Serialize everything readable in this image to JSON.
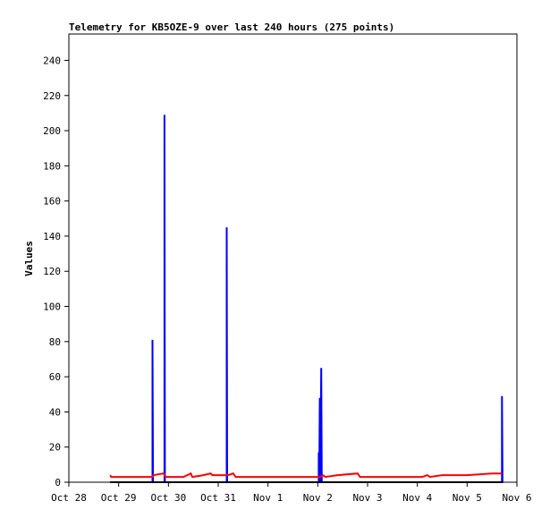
{
  "chart_data": {
    "type": "line",
    "title": "Telemetry for KB5OZE-9 over last 240 hours (275 points)",
    "xlabel": "",
    "ylabel": "Values",
    "ylim": [
      0,
      255
    ],
    "xlim": [
      0,
      9
    ],
    "x_tick_labels": [
      "Oct 28",
      "Oct 29",
      "Oct 30",
      "Oct 31",
      "Nov 1",
      "Nov 2",
      "Nov 3",
      "Nov 4",
      "Nov 5",
      "Nov 6"
    ],
    "y_ticks": [
      0,
      20,
      40,
      60,
      80,
      100,
      120,
      140,
      160,
      180,
      200,
      220,
      240
    ],
    "grid": false,
    "legend": "none",
    "series": [
      {
        "color": "#0000ff",
        "style": "spikes",
        "points": [
          [
            1.68,
            0
          ],
          [
            1.68,
            81
          ],
          [
            1.69,
            0
          ],
          [
            1.92,
            0
          ],
          [
            1.92,
            209
          ],
          [
            1.93,
            0
          ],
          [
            3.17,
            0
          ],
          [
            3.17,
            145
          ],
          [
            3.18,
            0
          ],
          [
            5.02,
            0
          ],
          [
            5.02,
            17
          ],
          [
            5.03,
            0
          ],
          [
            5.04,
            48
          ],
          [
            5.05,
            0
          ],
          [
            5.07,
            65
          ],
          [
            5.08,
            0
          ],
          [
            8.7,
            0
          ],
          [
            8.7,
            49
          ],
          [
            8.71,
            0
          ]
        ]
      },
      {
        "color": "#ff0000",
        "style": "line",
        "points": [
          [
            0.83,
            4
          ],
          [
            0.85,
            3
          ],
          [
            1.3,
            3
          ],
          [
            1.68,
            3
          ],
          [
            1.7,
            4
          ],
          [
            1.9,
            5
          ],
          [
            1.95,
            3
          ],
          [
            2.3,
            3
          ],
          [
            2.45,
            5
          ],
          [
            2.48,
            3
          ],
          [
            2.7,
            4
          ],
          [
            2.85,
            5
          ],
          [
            2.88,
            4
          ],
          [
            3.2,
            4
          ],
          [
            3.3,
            5
          ],
          [
            3.35,
            3
          ],
          [
            4.0,
            3
          ],
          [
            4.6,
            3
          ],
          [
            5.05,
            3
          ],
          [
            5.1,
            4
          ],
          [
            5.15,
            3
          ],
          [
            5.4,
            4
          ],
          [
            5.8,
            5
          ],
          [
            5.85,
            3
          ],
          [
            6.5,
            3
          ],
          [
            7.1,
            3
          ],
          [
            7.2,
            4
          ],
          [
            7.25,
            3
          ],
          [
            7.5,
            4
          ],
          [
            8.0,
            4
          ],
          [
            8.5,
            5
          ],
          [
            8.7,
            5
          ]
        ]
      },
      {
        "color": "#000000",
        "style": "line",
        "points": [
          [
            0.83,
            0
          ],
          [
            8.72,
            0
          ]
        ]
      }
    ]
  }
}
